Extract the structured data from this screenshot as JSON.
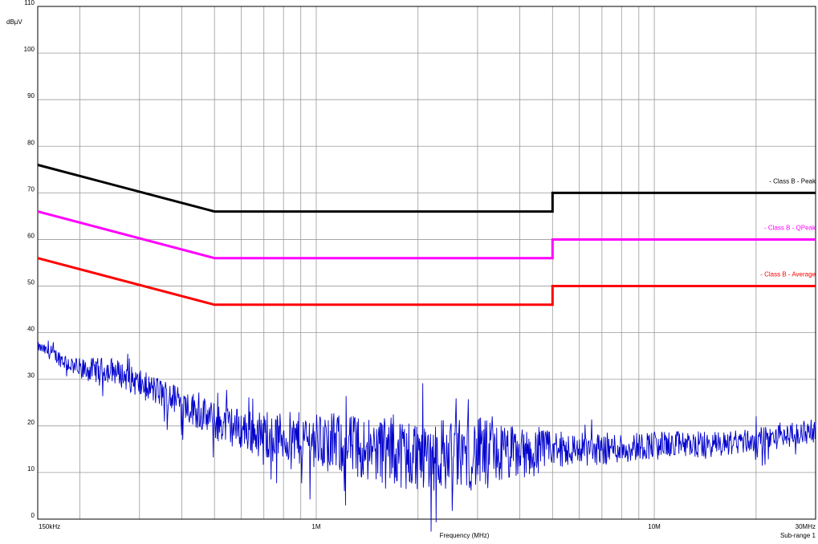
{
  "chart_data": {
    "type": "line",
    "title": "",
    "xlabel": "Frequency (MHz)",
    "ylabel": "dBµV",
    "x_scale": "log",
    "xlim": [
      0.15,
      30
    ],
    "ylim": [
      0,
      110
    ],
    "grid": true,
    "subrange_label": "Sub-range 1",
    "y_ticks": [
      {
        "value": 0,
        "label": "0"
      },
      {
        "value": 10,
        "label": "10"
      },
      {
        "value": 20,
        "label": "20"
      },
      {
        "value": 30,
        "label": "30"
      },
      {
        "value": 40,
        "label": "40"
      },
      {
        "value": 50,
        "label": "50"
      },
      {
        "value": 60,
        "label": "60"
      },
      {
        "value": 70,
        "label": "70"
      },
      {
        "value": 80,
        "label": "80"
      },
      {
        "value": 90,
        "label": "90"
      },
      {
        "value": 100,
        "label": "100"
      },
      {
        "value": 110,
        "label": "110"
      }
    ],
    "x_ticks": [
      {
        "value": 0.15,
        "label": "150kHz"
      },
      {
        "value": 1,
        "label": "1M"
      },
      {
        "value": 10,
        "label": "10M"
      },
      {
        "value": 30,
        "label": "30MHz"
      }
    ],
    "x_gridlines": [
      0.2,
      0.3,
      0.4,
      0.5,
      0.6,
      0.7,
      0.8,
      0.9,
      1,
      2,
      3,
      4,
      5,
      6,
      7,
      8,
      9,
      10,
      20
    ],
    "limit_lines": [
      {
        "name": "- Class B - Peak",
        "color": "#000000",
        "points": [
          [
            0.15,
            76
          ],
          [
            0.5,
            66
          ],
          [
            5,
            66
          ],
          [
            5,
            70
          ],
          [
            30,
            70
          ]
        ]
      },
      {
        "name": "- Class B - QPeak",
        "color": "#ff00ff",
        "points": [
          [
            0.15,
            66
          ],
          [
            0.5,
            56
          ],
          [
            5,
            56
          ],
          [
            5,
            60
          ],
          [
            30,
            60
          ]
        ]
      },
      {
        "name": "- Class B - Average",
        "color": "#ff0000",
        "points": [
          [
            0.15,
            56
          ],
          [
            0.5,
            46
          ],
          [
            5,
            46
          ],
          [
            5,
            50
          ],
          [
            30,
            50
          ]
        ]
      }
    ],
    "measurement": {
      "color": "#0000cc",
      "envelope": [
        [
          0.15,
          37
        ],
        [
          0.17,
          35
        ],
        [
          0.2,
          32
        ],
        [
          0.25,
          32
        ],
        [
          0.3,
          29
        ],
        [
          0.35,
          27
        ],
        [
          0.4,
          25
        ],
        [
          0.5,
          21
        ],
        [
          0.7,
          18
        ],
        [
          1.0,
          17
        ],
        [
          1.5,
          15
        ],
        [
          2.0,
          14
        ],
        [
          2.5,
          14
        ],
        [
          3.0,
          14
        ],
        [
          4.0,
          14
        ],
        [
          5.0,
          15
        ],
        [
          7.0,
          15
        ],
        [
          10.0,
          16
        ],
        [
          15.0,
          16
        ],
        [
          20.0,
          17
        ],
        [
          25.0,
          18
        ],
        [
          30.0,
          19
        ]
      ],
      "spread": [
        [
          0.15,
          1
        ],
        [
          0.2,
          2.5
        ],
        [
          0.3,
          3
        ],
        [
          0.5,
          4
        ],
        [
          1.0,
          6
        ],
        [
          2.0,
          8
        ],
        [
          3.0,
          8
        ],
        [
          5.0,
          4
        ],
        [
          10.0,
          3
        ],
        [
          30.0,
          2.5
        ]
      ]
    }
  }
}
